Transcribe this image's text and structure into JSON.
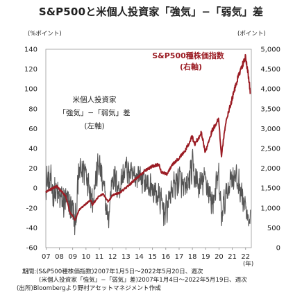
{
  "title": "S&P500と米個人投資家「強気」−「弱気」差",
  "chart_data": {
    "type": "line",
    "left_axis": {
      "unit": "(%ポイント)",
      "ticks": [
        -60,
        -40,
        -20,
        0,
        20,
        40,
        60,
        80,
        100,
        120,
        140
      ],
      "ylim": [
        -60,
        140
      ]
    },
    "right_axis": {
      "unit": "(ポイント)",
      "ticks": [
        0,
        500,
        1000,
        1500,
        2000,
        2500,
        3000,
        3500,
        4000,
        4500,
        5000
      ],
      "ylim": [
        0,
        5000
      ]
    },
    "x_axis": {
      "unit": "(年)",
      "ticks": [
        "07",
        "08",
        "09",
        "10",
        "11",
        "12",
        "13",
        "14",
        "15",
        "16",
        "17",
        "18",
        "19",
        "20",
        "21",
        "22"
      ],
      "xlim": [
        2007.0,
        2022.45
      ]
    },
    "series": [
      {
        "name": "米個人投資家「強気」−「弱気」差",
        "axis": "left",
        "color": "#555555",
        "label_lines": [
          "米個人投資家",
          "「強気」−「弱気」差",
          "(左軸)"
        ],
        "x": [
          2007.0,
          2007.5,
          2008.0,
          2008.5,
          2009.0,
          2009.2,
          2009.5,
          2010.0,
          2010.5,
          2011.0,
          2011.5,
          2011.7,
          2012.0,
          2012.5,
          2013.0,
          2013.5,
          2014.0,
          2014.5,
          2015.0,
          2015.5,
          2016.0,
          2016.5,
          2017.0,
          2017.5,
          2018.0,
          2018.5,
          2019.0,
          2019.5,
          2020.0,
          2020.2,
          2020.5,
          2021.0,
          2021.5,
          2022.0,
          2022.3,
          2022.4
        ],
        "y": [
          10,
          0,
          -10,
          -15,
          -20,
          -40,
          15,
          20,
          -10,
          25,
          -15,
          -35,
          15,
          0,
          20,
          10,
          15,
          5,
          0,
          -10,
          -25,
          0,
          10,
          -5,
          20,
          0,
          10,
          -15,
          10,
          -30,
          -10,
          15,
          5,
          -20,
          -40,
          -30
        ],
        "amplitude": [
          22,
          22,
          22,
          22,
          20,
          22,
          20,
          22,
          20,
          20,
          22,
          15,
          20,
          18,
          20,
          18,
          18,
          18,
          18,
          18,
          20,
          18,
          20,
          18,
          22,
          18,
          18,
          18,
          20,
          20,
          18,
          20,
          18,
          18,
          10,
          10
        ]
      },
      {
        "name": "S&P500種株価指数",
        "axis": "right",
        "color": "#9b1c24",
        "label_lines": [
          "S&P500種株価指数",
          "(右軸)"
        ],
        "x": [
          2007.0,
          2007.8,
          2008.5,
          2008.8,
          2009.2,
          2009.5,
          2010.0,
          2010.4,
          2010.5,
          2011.0,
          2011.3,
          2011.7,
          2012.0,
          2012.5,
          2013.0,
          2013.5,
          2014.0,
          2014.5,
          2015.0,
          2015.5,
          2015.7,
          2016.1,
          2016.5,
          2017.0,
          2017.5,
          2018.0,
          2018.2,
          2018.7,
          2018.98,
          2019.5,
          2020.0,
          2020.2,
          2020.5,
          2021.0,
          2021.5,
          2021.9,
          2022.0,
          2022.2,
          2022.38
        ],
        "y": [
          1400,
          1550,
          1300,
          900,
          700,
          950,
          1100,
          1200,
          1080,
          1300,
          1350,
          1150,
          1320,
          1380,
          1500,
          1650,
          1800,
          1950,
          2050,
          2100,
          1900,
          1850,
          2100,
          2250,
          2450,
          2800,
          2600,
          2900,
          2400,
          2950,
          3250,
          2300,
          3100,
          3750,
          4350,
          4700,
          4800,
          4400,
          3900
        ]
      }
    ],
    "grid": false,
    "legend": "inline labels",
    "notes": [
      "期間:(S&P500種株価指数)2007年1月5日〜2022年5月20日、週次",
      "(米個人投資家「強気」−「弱気」差)2007年1月4日〜2022年5月19日、週次",
      "(出所)Bloombergより野村アセットマネジメント作成"
    ]
  }
}
